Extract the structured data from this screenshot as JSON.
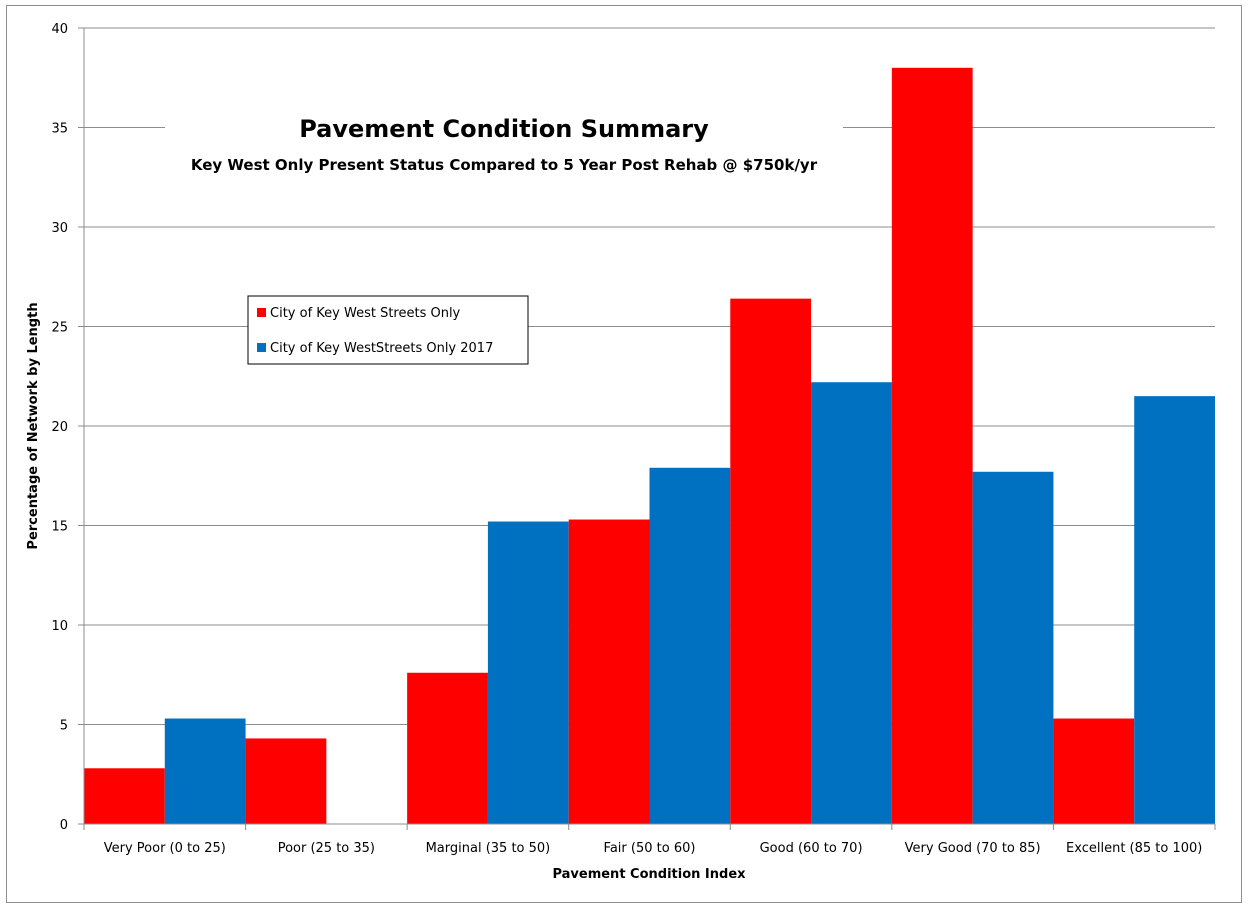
{
  "chart_data": {
    "type": "bar",
    "title": "Pavement Condition Summary",
    "subtitle": "Key West Only Present Status Compared to 5 Year Post Rehab @ $750k/yr",
    "xlabel": "Pavement Condition Index",
    "ylabel": "Percentage of Network by Length",
    "ylim": [
      0,
      40
    ],
    "yticks": [
      0,
      5,
      10,
      15,
      20,
      25,
      30,
      35,
      40
    ],
    "grid": true,
    "legend_position": "left",
    "categories": [
      "Very Poor (0 to 25)",
      "Poor (25 to 35)",
      "Marginal (35 to 50)",
      "Fair (50 to 60)",
      "Good (60 to 70)",
      "Very Good (70 to 85)",
      "Excellent (85 to 100)"
    ],
    "series": [
      {
        "name": "City of Key West Streets Only",
        "color": "#ff0000",
        "values": [
          2.8,
          4.3,
          7.6,
          15.3,
          26.4,
          38.0,
          5.3
        ]
      },
      {
        "name": "City of Key WestStreets Only 2017",
        "color": "#0070c0",
        "values": [
          5.3,
          0,
          15.2,
          17.9,
          22.2,
          17.7,
          21.5
        ]
      }
    ]
  }
}
